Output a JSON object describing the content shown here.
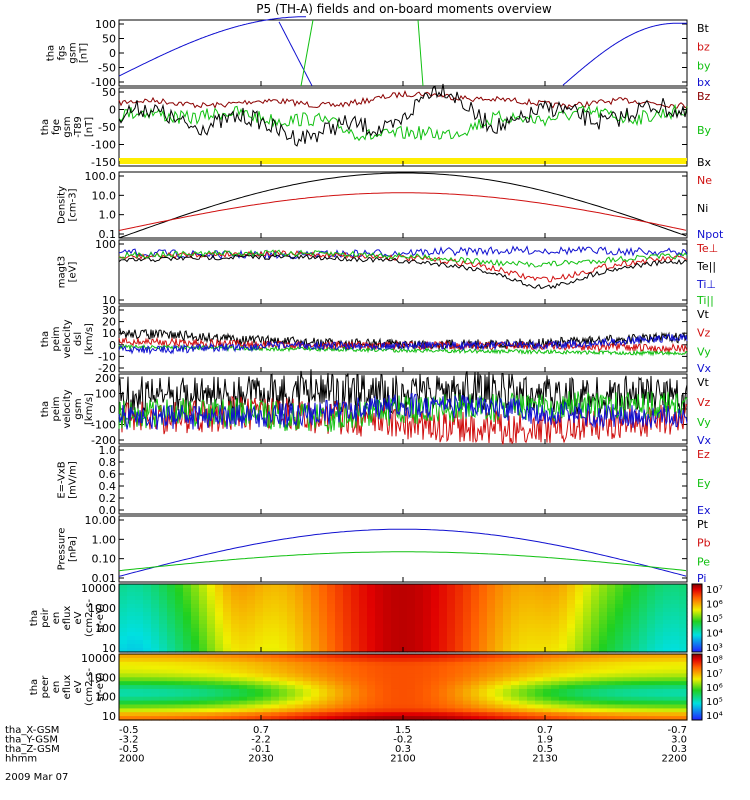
{
  "title": "P5 (TH-A) fields and on-board moments overview",
  "colors": {
    "black": "#000000",
    "red": "#d01010",
    "green": "#10c010",
    "blue": "#1010d0",
    "darkred": "#8b0000",
    "yellow": "#ffee00"
  },
  "x_axis": {
    "rows": [
      {
        "label": "tha_X-GSM",
        "values": [
          "-0.5",
          "0.7",
          "1.5",
          "0.7",
          "-0.7"
        ]
      },
      {
        "label": "tha_Y-GSM",
        "values": [
          "-3.2",
          "-2.2",
          "-0.2",
          "1.9",
          "3.0"
        ]
      },
      {
        "label": "tha_Z-GSM",
        "values": [
          "-0.5",
          "-0.1",
          "0.3",
          "0.5",
          "0.3"
        ]
      },
      {
        "label": "hhmm",
        "values": [
          "2000",
          "2030",
          "2100",
          "2130",
          "2200"
        ]
      }
    ],
    "date": "2009 Mar 07"
  },
  "chart_data": [
    {
      "type": "line",
      "ylabel_lines": [
        "tha",
        "fgs",
        "gsm",
        "[nT]"
      ],
      "ticks": [
        "100",
        "50",
        "0",
        "-50",
        "-100"
      ],
      "ylim": [
        -100,
        100
      ],
      "legend": [
        {
          "text": "Bt",
          "color": "black"
        },
        {
          "text": "bz",
          "color": "red"
        },
        {
          "text": "by",
          "color": "green"
        },
        {
          "text": "bx",
          "color": "blue"
        }
      ]
    },
    {
      "type": "line",
      "ylabel_lines": [
        "tha",
        "fge",
        "gsm",
        "-T89",
        "[nT]"
      ],
      "ticks": [
        "50",
        "0",
        "-50",
        "-100",
        "-150"
      ],
      "ylim": [
        -180,
        80
      ],
      "legend": [
        {
          "text": "Bz",
          "color": "darkred"
        },
        {
          "text": "By",
          "color": "green"
        },
        {
          "text": "Bx",
          "color": "black"
        }
      ]
    },
    {
      "type": "line",
      "ylabel_lines": [
        "Density",
        "[cm-3]"
      ],
      "ticks": [
        "100.0",
        "10.0",
        "1.0",
        "0.1"
      ],
      "log": true,
      "legend": [
        {
          "text": "Ne",
          "color": "red"
        },
        {
          "text": "Ni",
          "color": "black"
        },
        {
          "text": "Npot",
          "color": "blue"
        }
      ]
    },
    {
      "type": "line",
      "ylabel_lines": [
        "magt3",
        "[eV]"
      ],
      "ticks": [
        "100",
        "10"
      ],
      "log": true,
      "legend": [
        {
          "text": "Te⊥",
          "color": "red"
        },
        {
          "text": "Te||",
          "color": "black"
        },
        {
          "text": "Ti⊥",
          "color": "blue"
        },
        {
          "text": "Ti||",
          "color": "green"
        }
      ]
    },
    {
      "type": "line",
      "ylabel_lines": [
        "tha",
        "peim",
        "velocity",
        "dsl",
        "[km/s]"
      ],
      "ticks": [
        "30",
        "20",
        "10",
        "0",
        "-10",
        "-20"
      ],
      "ylim": [
        -20,
        30
      ],
      "legend": [
        {
          "text": "Vt",
          "color": "black"
        },
        {
          "text": "Vz",
          "color": "red"
        },
        {
          "text": "Vy",
          "color": "green"
        },
        {
          "text": "Vx",
          "color": "blue"
        }
      ]
    },
    {
      "type": "line",
      "ylabel_lines": [
        "tha",
        "peim",
        "velocity",
        "gsm",
        "[km/s]"
      ],
      "ticks": [
        "200",
        "100",
        "0",
        "-100",
        "-200"
      ],
      "ylim": [
        -200,
        220
      ],
      "legend": [
        {
          "text": "Vt",
          "color": "black"
        },
        {
          "text": "Vz",
          "color": "red"
        },
        {
          "text": "Vy",
          "color": "green"
        },
        {
          "text": "Vx",
          "color": "blue"
        }
      ]
    },
    {
      "type": "line",
      "ylabel_lines": [
        "E=-VxB",
        "[mV/m]"
      ],
      "ticks": [
        "1.0",
        "0.8",
        "0.6",
        "0.4",
        "0.2",
        "0.0"
      ],
      "ylim": [
        0,
        1
      ],
      "legend": [
        {
          "text": "Ez",
          "color": "red"
        },
        {
          "text": "Ey",
          "color": "green"
        },
        {
          "text": "Ex",
          "color": "blue"
        }
      ]
    },
    {
      "type": "line",
      "ylabel_lines": [
        "Pressure",
        "[nPa]"
      ],
      "ticks": [
        "10.00",
        "1.00",
        "0.10",
        "0.01"
      ],
      "log": true,
      "legend": [
        {
          "text": "Pt",
          "color": "black"
        },
        {
          "text": "Pb",
          "color": "red"
        },
        {
          "text": "Pe",
          "color": "green"
        },
        {
          "text": "Pi",
          "color": "blue"
        }
      ]
    },
    {
      "type": "heatmap",
      "ylabel_lines": [
        "tha",
        "peir",
        "en",
        "eflux",
        "eV",
        "(cm2-s-",
        "sr-eV)"
      ],
      "ticks": [
        "10000",
        "1000",
        "100",
        "10"
      ],
      "colorbar_ticks": [
        "10⁷",
        "10⁶",
        "10⁵",
        "10⁴",
        "10³"
      ]
    },
    {
      "type": "heatmap",
      "ylabel_lines": [
        "tha",
        "peer",
        "en",
        "eflux",
        "eV",
        "(cm2-s-",
        "sr-eV)"
      ],
      "ticks": [
        "10000",
        "1000",
        "100",
        "10"
      ],
      "colorbar_ticks": [
        "10⁸",
        "10⁷",
        "10⁶",
        "10⁵",
        "10⁴"
      ]
    }
  ]
}
